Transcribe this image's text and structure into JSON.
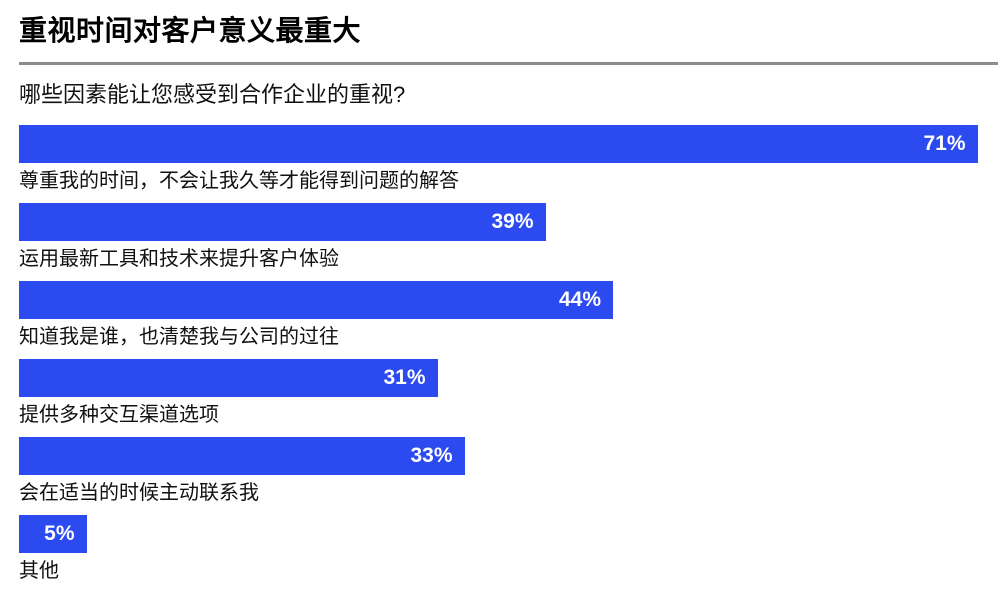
{
  "title": "重视时间对客户意义最重大",
  "question": "哪些因素能让您感受到合作企业的重视?",
  "colors": {
    "background": "#FFFFFF",
    "bar": "#2B4BF0",
    "bar_value_text": "#FFFFFF",
    "title_text": "#000000",
    "body_text": "#111111",
    "divider": "#8C8C8C"
  },
  "chart_data": {
    "type": "bar",
    "orientation": "horizontal",
    "title": "重视时间对客户意义最重大",
    "subtitle": "哪些因素能让您感受到合作企业的重视?",
    "unit": "%",
    "xlim": [
      0,
      74
    ],
    "grid": false,
    "legend": "none",
    "value_labels": "inside-right",
    "categories": [
      "尊重我的时间，不会让我久等才能得到问题的解答",
      "运用最新工具和技术来提升客户体验",
      "知道我是谁，也清楚我与公司的过往",
      "提供多种交互渠道选项",
      "会在适当的时候主动联系我",
      "其他"
    ],
    "values": [
      71,
      39,
      44,
      31,
      33,
      5
    ],
    "bars": [
      {
        "label": "尊重我的时间，不会让我久等才能得到问题的解答",
        "value": 71,
        "value_label": "71%"
      },
      {
        "label": "运用最新工具和技术来提升客户体验",
        "value": 39,
        "value_label": "39%"
      },
      {
        "label": "知道我是谁，也清楚我与公司的过往",
        "value": 44,
        "value_label": "44%"
      },
      {
        "label": "提供多种交互渠道选项",
        "value": 31,
        "value_label": "31%"
      },
      {
        "label": "会在适当的时候主动联系我",
        "value": 33,
        "value_label": "33%"
      },
      {
        "label": "其他",
        "value": 5,
        "value_label": "5%"
      }
    ]
  }
}
